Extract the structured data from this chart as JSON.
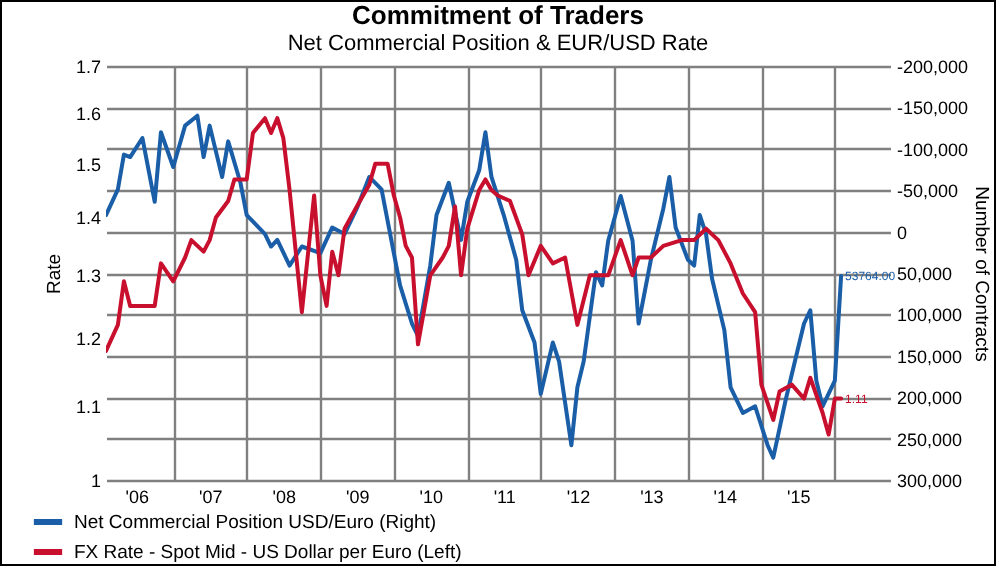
{
  "chart_data": {
    "type": "line",
    "title": "Commitment of Traders",
    "subtitle": "Net Commercial Position & EUR/USD Rate",
    "ylabel": "Rate",
    "y2label": "Number of Contracts",
    "log": "y",
    "grid": true,
    "legend": "bottom",
    "xlim": [
      "2006-02",
      "2016-10"
    ],
    "xticks": [
      {
        "value": "2006-07",
        "label": "'06"
      },
      {
        "value": "2007-07",
        "label": "'07"
      },
      {
        "value": "2008-07",
        "label": "'08"
      },
      {
        "value": "2009-07",
        "label": "'09"
      },
      {
        "value": "2010-07",
        "label": "'10"
      },
      {
        "value": "2011-07",
        "label": "'11"
      },
      {
        "value": "2012-07",
        "label": "'12"
      },
      {
        "value": "2013-07",
        "label": "'13"
      },
      {
        "value": "2014-07",
        "label": "'14"
      },
      {
        "value": "2015-07",
        "label": "'15"
      },
      {
        "value": "2007",
        "label": null
      },
      {
        "value": "2008",
        "label": null
      },
      {
        "value": "2009",
        "label": null
      },
      {
        "value": "2010",
        "label": null
      },
      {
        "value": "2011",
        "label": null
      },
      {
        "value": "2012",
        "label": null
      },
      {
        "value": "2013",
        "label": null
      },
      {
        "value": "2014",
        "label": null
      },
      {
        "value": "2015",
        "label": null
      },
      {
        "value": "2016",
        "label": null
      }
    ],
    "ylim": [
      1,
      1.7
    ],
    "yticks": [
      1,
      1.1,
      1.2,
      1.3,
      1.4,
      1.5,
      1.6,
      1.7
    ],
    "y2lim": [
      300000,
      -200000
    ],
    "y2ticks": [
      {
        "value": -200000,
        "label": "-200,000"
      },
      {
        "value": -150000,
        "label": "-150,000"
      },
      {
        "value": -100000,
        "label": "-100,000"
      },
      {
        "value": -50000,
        "label": "-50,000"
      },
      0,
      {
        "value": 50000,
        "label": "50,000"
      },
      {
        "value": 100000,
        "label": "100,000"
      },
      {
        "value": 150000,
        "label": "150,000"
      },
      {
        "value": 200000,
        "label": "200,000"
      },
      {
        "value": 250000,
        "label": "250,000"
      },
      {
        "value": 300000,
        "label": "300,000"
      }
    ],
    "series": [
      {
        "name": "Net Commercial Position USD/Euro (Right)",
        "color": "#1a5ea8",
        "axis": "y2",
        "x": [
          "2006-02",
          "2006-04",
          "2006-05",
          "2006-06",
          "2006-08",
          "2006-10",
          "2006-11",
          "2007-01",
          "2007-03",
          "2007-05",
          "2007-06",
          "2007-07",
          "2007-09",
          "2007-10",
          "2007-12",
          "2008-01",
          "2008-04",
          "2008-05",
          "2008-06",
          "2008-08",
          "2008-10",
          "2009-01",
          "2009-03",
          "2009-05",
          "2009-07",
          "2009-09",
          "2009-11",
          "2010-01",
          "2010-02",
          "2010-04",
          "2010-05",
          "2010-07",
          "2010-08",
          "2010-10",
          "2010-12",
          "2011-01",
          "2011-03",
          "2011-04",
          "2011-05",
          "2011-07",
          "2011-09",
          "2011-10",
          "2011-12",
          "2012-01",
          "2012-03",
          "2012-04",
          "2012-06",
          "2012-07",
          "2012-08",
          "2012-10",
          "2012-11",
          "2012-12",
          "2013-02",
          "2013-04",
          "2013-05",
          "2013-07",
          "2013-09",
          "2013-10",
          "2013-11",
          "2014-01",
          "2014-02",
          "2014-03",
          "2014-04",
          "2014-05",
          "2014-07",
          "2014-08",
          "2014-10",
          "2014-12",
          "2015-02",
          "2015-03",
          "2015-05",
          "2015-07",
          "2015-08",
          "2015-09",
          "2015-10",
          "2015-11",
          "2016-01",
          "2016-02"
        ],
        "values": [
          -20000,
          -51000,
          -93000,
          -90000,
          -113000,
          -36000,
          -120000,
          -78000,
          -128000,
          -140000,
          -90000,
          -128000,
          -66000,
          -109000,
          -59000,
          -20000,
          3000,
          18000,
          10000,
          41000,
          18000,
          26000,
          -5000,
          3000,
          -28000,
          -66000,
          -51000,
          26000,
          65000,
          111000,
          126000,
          41000,
          -20000,
          -59000,
          10000,
          -36000,
          -74000,
          -120000,
          -66000,
          -20000,
          34000,
          95000,
          134000,
          196000,
          134000,
          157000,
          258000,
          188000,
          157000,
          49000,
          65000,
          11000,
          -43000,
          11000,
          111000,
          34000,
          -28000,
          -66000,
          -5000,
          34000,
          41000,
          -20000,
          3000,
          57000,
          119000,
          188000,
          219000,
          211000,
          258000,
          273000,
          204000,
          142000,
          111000,
          95000,
          180000,
          211000,
          180000,
          53764
        ],
        "value_labels": [
          null,
          null,
          null,
          null,
          null,
          null,
          null,
          null,
          null,
          null,
          null,
          null,
          null,
          null,
          null,
          null,
          null,
          null,
          null,
          null,
          null,
          null,
          null,
          null,
          null,
          null,
          null,
          null,
          null,
          null,
          null,
          null,
          null,
          null,
          null,
          null,
          null,
          null,
          null,
          null,
          null,
          null,
          null,
          null,
          null,
          null,
          null,
          null,
          null,
          null,
          null,
          null,
          null,
          null,
          null,
          null,
          null,
          null,
          null,
          null,
          null,
          null,
          null,
          null,
          null,
          null,
          null,
          null,
          null,
          null,
          null,
          null,
          null,
          null,
          null,
          null,
          null,
          "53764.00"
        ]
      },
      {
        "name": "FX Rate - Spot Mid - US Dollar per Euro  (Left)",
        "color": "#c8102e",
        "axis": "y",
        "x": [
          "2006-02",
          "2006-04",
          "2006-05",
          "2006-06",
          "2006-10",
          "2006-11",
          "2007-01",
          "2007-03",
          "2007-04",
          "2007-06",
          "2007-07",
          "2007-08",
          "2007-10",
          "2007-11",
          "2008-01",
          "2008-02",
          "2008-04",
          "2008-05",
          "2008-06",
          "2008-07",
          "2008-08",
          "2008-10",
          "2008-12",
          "2009-01",
          "2009-02",
          "2009-03",
          "2009-04",
          "2009-05",
          "2009-07",
          "2009-09",
          "2009-10",
          "2009-12",
          "2010-01",
          "2010-02",
          "2010-03",
          "2010-04",
          "2010-05",
          "2010-07",
          "2010-09",
          "2010-10",
          "2010-11",
          "2010-12",
          "2011-01",
          "2011-03",
          "2011-04",
          "2011-05",
          "2011-06",
          "2011-08",
          "2011-10",
          "2011-11",
          "2012-01",
          "2012-03",
          "2012-05",
          "2012-07",
          "2012-09",
          "2012-12",
          "2013-02",
          "2013-04",
          "2013-05",
          "2013-07",
          "2013-09",
          "2013-12",
          "2014-02",
          "2014-04",
          "2014-06",
          "2014-08",
          "2014-10",
          "2014-12",
          "2015-01",
          "2015-03",
          "2015-04",
          "2015-06",
          "2015-08",
          "2015-09",
          "2015-11",
          "2015-12",
          "2016-01",
          "2016-02"
        ],
        "values": [
          1.18,
          1.22,
          1.29,
          1.25,
          1.25,
          1.32,
          1.29,
          1.33,
          1.36,
          1.34,
          1.36,
          1.4,
          1.43,
          1.47,
          1.47,
          1.56,
          1.59,
          1.56,
          1.59,
          1.55,
          1.45,
          1.24,
          1.44,
          1.3,
          1.25,
          1.34,
          1.3,
          1.38,
          1.42,
          1.46,
          1.5,
          1.5,
          1.44,
          1.4,
          1.35,
          1.33,
          1.19,
          1.3,
          1.33,
          1.35,
          1.42,
          1.3,
          1.38,
          1.45,
          1.47,
          1.45,
          1.44,
          1.43,
          1.37,
          1.3,
          1.35,
          1.32,
          1.33,
          1.22,
          1.3,
          1.3,
          1.36,
          1.3,
          1.33,
          1.33,
          1.35,
          1.36,
          1.36,
          1.38,
          1.36,
          1.32,
          1.27,
          1.24,
          1.13,
          1.08,
          1.12,
          1.13,
          1.11,
          1.14,
          1.09,
          1.06,
          1.11,
          1.11
        ],
        "value_labels": [
          null,
          null,
          null,
          null,
          null,
          null,
          null,
          null,
          null,
          null,
          null,
          null,
          null,
          null,
          null,
          null,
          null,
          null,
          null,
          null,
          null,
          null,
          null,
          null,
          null,
          null,
          null,
          null,
          null,
          null,
          null,
          null,
          null,
          null,
          null,
          null,
          null,
          null,
          null,
          null,
          null,
          null,
          null,
          null,
          null,
          null,
          null,
          null,
          null,
          null,
          null,
          null,
          null,
          null,
          null,
          null,
          null,
          null,
          null,
          null,
          null,
          null,
          null,
          null,
          null,
          null,
          null,
          null,
          null,
          null,
          null,
          null,
          null,
          null,
          null,
          null,
          null,
          "1.11"
        ]
      }
    ]
  }
}
